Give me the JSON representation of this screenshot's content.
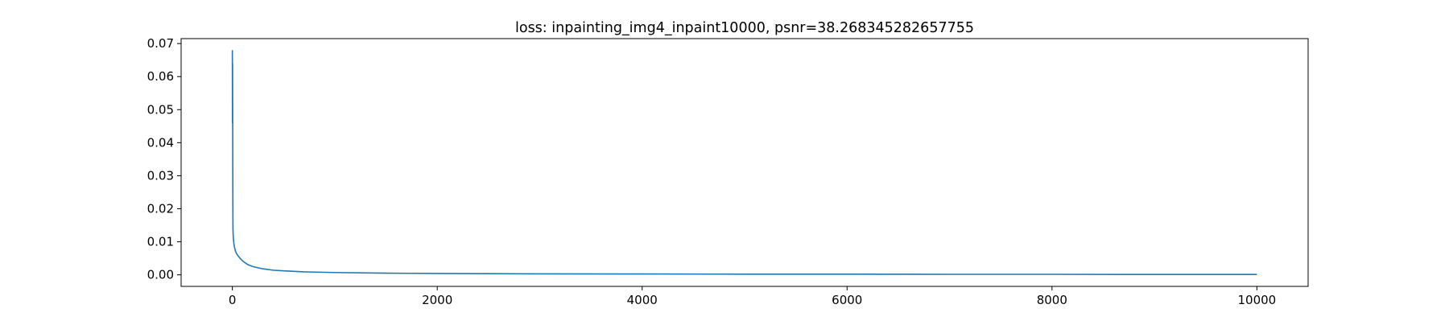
{
  "chart_data": {
    "type": "line",
    "title": "loss: inpainting_img4_inpaint10000, psnr=38.268345282657755",
    "xlabel": "",
    "ylabel": "",
    "xlim": [
      -500,
      10500
    ],
    "ylim": [
      -0.0035,
      0.0715
    ],
    "x_ticks": [
      0,
      2000,
      4000,
      6000,
      8000,
      10000
    ],
    "x_tick_labels": [
      "0",
      "2000",
      "4000",
      "6000",
      "8000",
      "10000"
    ],
    "y_ticks": [
      0.0,
      0.01,
      0.02,
      0.03,
      0.04,
      0.05,
      0.06,
      0.07
    ],
    "y_tick_labels": [
      "0.00",
      "0.01",
      "0.02",
      "0.03",
      "0.04",
      "0.05",
      "0.06",
      "0.07"
    ],
    "grid": false,
    "legend": "none",
    "series": [
      {
        "color": "#1f77b4",
        "x": [
          0,
          1,
          2,
          3,
          4,
          5,
          6,
          8,
          10,
          15,
          20,
          30,
          40,
          50,
          70,
          100,
          150,
          200,
          300,
          400,
          500,
          700,
          1000,
          1500,
          2000,
          3000,
          4000,
          5000,
          6000,
          7000,
          8000,
          9000,
          10000
        ],
        "y": [
          0.068,
          0.046,
          0.064,
          0.052,
          0.035,
          0.022,
          0.014,
          0.012,
          0.011,
          0.0095,
          0.0085,
          0.0072,
          0.0065,
          0.006,
          0.0052,
          0.0042,
          0.0031,
          0.0025,
          0.0018,
          0.0014,
          0.0012,
          0.0009,
          0.0007,
          0.0005,
          0.0004,
          0.0003,
          0.00025,
          0.0002,
          0.0002,
          0.00015,
          0.00015,
          0.0001,
          0.0001
        ]
      }
    ]
  }
}
